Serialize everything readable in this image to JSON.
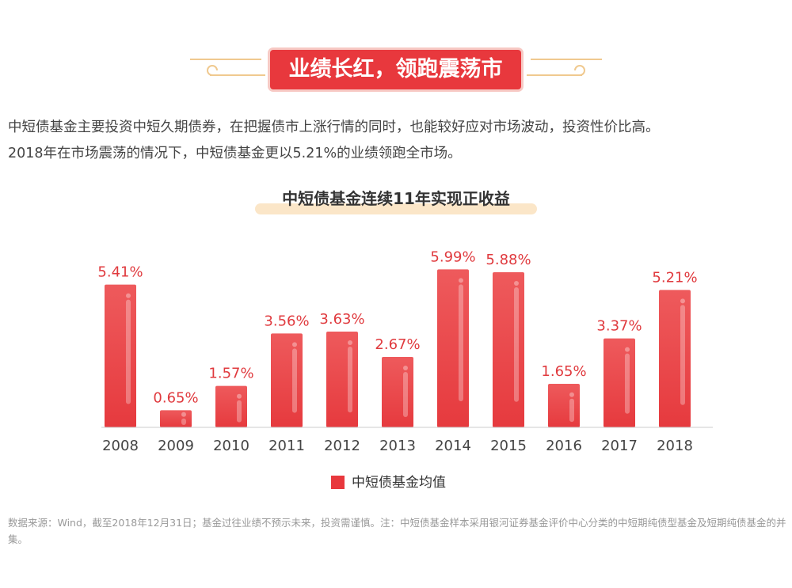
{
  "banner": {
    "title": "业绩长红，领跑震荡市"
  },
  "intro": {
    "line1": "中短债基金主要投资中短久期债券，在把握债市上涨行情的同时，也能较好应对市场波动，投资性价比高。",
    "line2": "2018年在市场震荡的情况下，中短债基金更以5.21%的业绩领跑全市场。"
  },
  "chart_data": {
    "type": "bar",
    "title": "中短债基金连续11年实现正收益",
    "categories": [
      "2008",
      "2009",
      "2010",
      "2011",
      "2012",
      "2013",
      "2014",
      "2015",
      "2016",
      "2017",
      "2018"
    ],
    "series": [
      {
        "name": "中短债基金均值",
        "values": [
          5.41,
          0.65,
          1.57,
          3.56,
          3.63,
          2.67,
          5.99,
          5.88,
          1.65,
          3.37,
          5.21
        ]
      }
    ],
    "value_labels": [
      "5.41%",
      "0.65%",
      "1.57%",
      "3.56%",
      "3.63%",
      "2.67%",
      "5.99%",
      "5.88%",
      "1.65%",
      "3.37%",
      "5.21%"
    ],
    "ylim": [
      0,
      6
    ],
    "grid": false,
    "legend": "bottom-center",
    "bar_color": "#e8383d"
  },
  "legend": {
    "label": "中短债基金均值"
  },
  "footnote": "数据来源：Wind，截至2018年12月31日；基金过往业绩不预示未来，投资需谨慎。注：中短债基金样本采用银河证券基金评价中心分类的中短期纯债型基金及短期纯债基金的并集。"
}
